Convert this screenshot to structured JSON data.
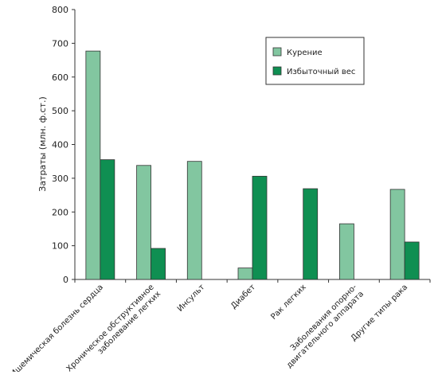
{
  "chart_data": {
    "type": "bar",
    "ylabel": "Затраты (млн. ф.ст.)",
    "ylim": [
      0,
      800
    ],
    "yticks": [
      0,
      100,
      200,
      300,
      400,
      500,
      600,
      700,
      800
    ],
    "grid": false,
    "legend_position": "top-right",
    "categories": [
      [
        "Ишемическая болезнь сердца"
      ],
      [
        "Хроническое обструктивное",
        "заболевание легких"
      ],
      [
        "Инсульт"
      ],
      [
        "Диабет"
      ],
      [
        "Рак легких"
      ],
      [
        "Заболевания опорно-",
        "двигательного аппарата"
      ],
      [
        "Другие типы рака"
      ]
    ],
    "series": [
      {
        "name": "Курение",
        "color": "#82c6a0",
        "values": [
          677,
          338,
          350,
          34,
          null,
          165,
          267
        ]
      },
      {
        "name": "Избыточный вес",
        "color": "#0f8f52",
        "values": [
          355,
          92,
          null,
          306,
          269,
          null,
          111
        ]
      }
    ]
  }
}
